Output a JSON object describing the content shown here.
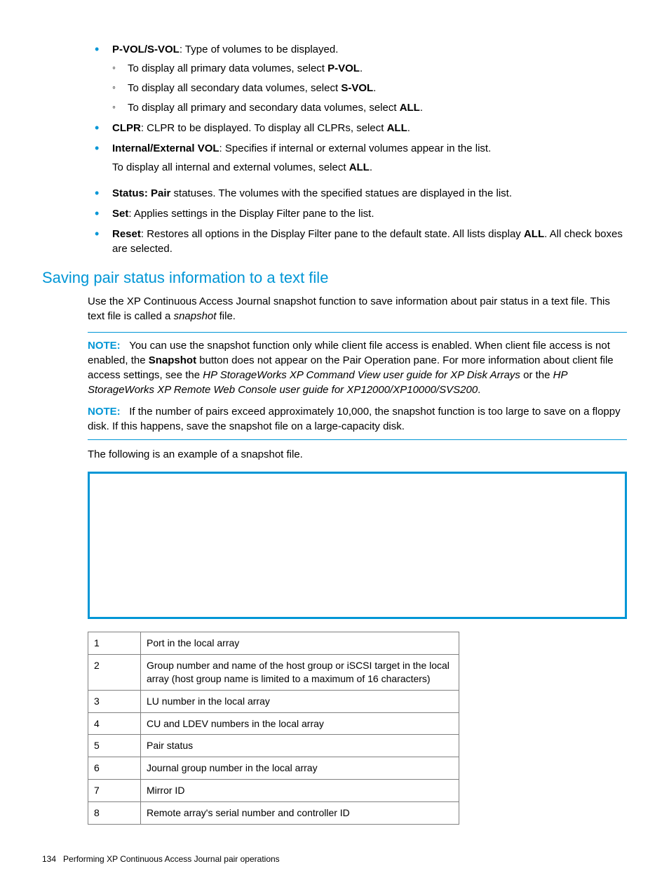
{
  "bullets": {
    "pvol_svol_label": "P-VOL/S-VOL",
    "pvol_svol_text": ": Type of volumes to be displayed.",
    "sub_pvol_pre": "To display all primary data volumes, select ",
    "sub_pvol_bold": "P-VOL",
    "sub_svol_pre": "To display all secondary data volumes, select ",
    "sub_svol_bold": "S-VOL",
    "sub_all_pre": "To display all primary and secondary data volumes, select ",
    "sub_all_bold": "ALL",
    "clpr_label": "CLPR",
    "clpr_text": ": CLPR to be displayed. To display all CLPRs, select ",
    "clpr_bold": "ALL",
    "intext_label": "Internal/External VOL",
    "intext_text": ": Specifies if internal or external volumes appear in the list.",
    "intext_line2_pre": "To display all internal and external volumes, select ",
    "intext_line2_bold": "ALL",
    "status_label": "Status: Pair",
    "status_text": " statuses. The volumes with the specified statues are displayed in the list.",
    "set_label": "Set",
    "set_text": ": Applies settings in the Display Filter pane to the list.",
    "reset_label": "Reset",
    "reset_text_1": ": Restores all options in the Display Filter pane to the default state. All lists display ",
    "reset_bold": "ALL",
    "reset_text_2": ". All check boxes are selected."
  },
  "section_title": "Saving pair status information to a text file",
  "intro_para_1": "Use the XP Continuous Access Journal snapshot function to save information about pair status in a text file. This text file is called a ",
  "intro_italic": "snapshot",
  "intro_para_2": " file.",
  "note1": {
    "label": "NOTE:",
    "t1": "You can use the snapshot function only while client file access is enabled. When client file access is not enabled, the ",
    "b1": "Snapshot",
    "t2": " button does not appear on the Pair Operation pane. For more information about client file access settings, see the ",
    "i1": "HP StorageWorks XP Command View user guide for XP Disk Arrays",
    "t3": " or the ",
    "i2": "HP StorageWorks XP Remote Web Console user guide for XP12000/XP10000/SVS200",
    "t4": "."
  },
  "note2": {
    "label": "NOTE:",
    "text": "If the number of pairs exceed approximately 10,000, the snapshot function is too large to save on a floppy disk. If this happens, save the snapshot file on a large-capacity disk."
  },
  "example_text": "The following is an example of a snapshot file.",
  "table": {
    "rows": [
      {
        "n": "1",
        "d": "Port in the local array"
      },
      {
        "n": "2",
        "d": "Group number and name of the host group or iSCSI target in the local array (host group name is limited to a maximum of 16 characters)"
      },
      {
        "n": "3",
        "d": "LU number in the local array"
      },
      {
        "n": "4",
        "d": "CU and LDEV numbers in the local array"
      },
      {
        "n": "5",
        "d": "Pair status"
      },
      {
        "n": "6",
        "d": "Journal group number in the local array"
      },
      {
        "n": "7",
        "d": "Mirror ID"
      },
      {
        "n": "8",
        "d": "Remote array's serial number and controller ID"
      }
    ]
  },
  "footer": {
    "page": "134",
    "title": "Performing XP Continuous Access Journal pair operations"
  }
}
